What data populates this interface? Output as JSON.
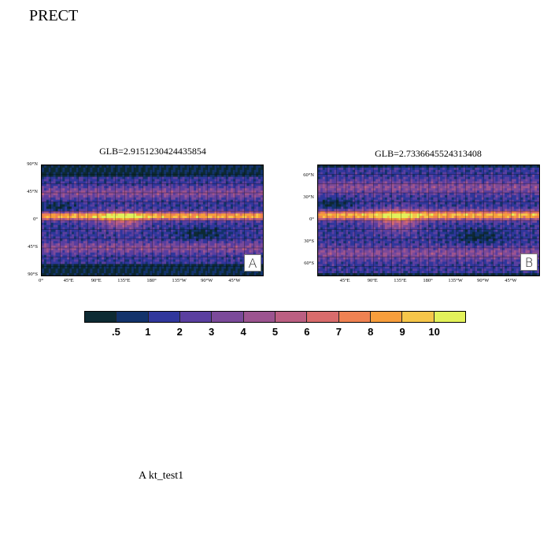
{
  "page_title": "PRECT",
  "panels": [
    {
      "id": "A",
      "title": "GLB=2.9151230424435854",
      "tag": "A",
      "lat_ticks": [
        "90°N",
        "45°N",
        "0°",
        "45°S",
        "90°S"
      ],
      "lon_ticks": [
        "0°",
        "45°E",
        "90°E",
        "135°E",
        "180°",
        "135°W",
        "90°W",
        "45°W"
      ]
    },
    {
      "id": "B",
      "title": "GLB=2.7336645524313408",
      "tag": "B",
      "lat_ticks": [
        "60°N",
        "30°N",
        "0°",
        "30°S",
        "60°S"
      ],
      "lon_ticks": [
        "45°E",
        "90°E",
        "135°E",
        "180°",
        "135°W",
        "90°W",
        "45°W"
      ]
    }
  ],
  "colorbar": {
    "colors": [
      "#0d2a33",
      "#13336b",
      "#30379c",
      "#5a3fa0",
      "#7b4a9a",
      "#9c5490",
      "#bb5f82",
      "#d86c6c",
      "#ef8252",
      "#f79e3c",
      "#f6c64a",
      "#e3f25a"
    ],
    "labels": [
      ".5",
      "1",
      "2",
      "3",
      "4",
      "5",
      "6",
      "7",
      "8",
      "9",
      "10"
    ]
  },
  "footer": "A  kt_test1"
}
